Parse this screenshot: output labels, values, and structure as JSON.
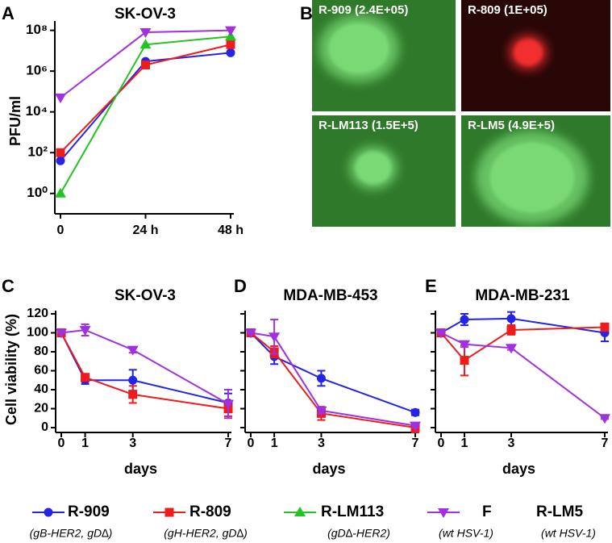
{
  "chart_data": [
    {
      "type": "line",
      "panel": "A",
      "title": "SK-OV-3",
      "y_label": "PFU/ml",
      "categories": [
        "0",
        "24 h",
        "48 h"
      ],
      "log_y": true,
      "ylim": [
        0.1,
        200000000
      ],
      "yticks": [
        {
          "value": 1,
          "label": "10⁰"
        },
        {
          "value": 100,
          "label": "10²"
        },
        {
          "value": 10000,
          "label": "10⁴"
        },
        {
          "value": 1000000,
          "label": "10⁶"
        },
        {
          "value": 100000000,
          "label": "10⁸"
        }
      ],
      "series": [
        {
          "color": "#2424e6",
          "marker": "circle",
          "values": [
            40,
            3000000,
            8000000
          ]
        },
        {
          "color": "#ee1c1c",
          "marker": "square",
          "values": [
            100,
            2000000,
            20000000
          ]
        },
        {
          "color": "#22c422",
          "marker": "triangle-up",
          "values": [
            1,
            20000000,
            50000000
          ]
        },
        {
          "color": "#a030e0",
          "marker": "triangle-down",
          "values": [
            50000,
            80000000,
            100000000
          ]
        }
      ]
    },
    {
      "type": "line",
      "panel": "C",
      "title": "SK-OV-3",
      "y_label": "Cell viability (%)",
      "x_label": "days",
      "x": [
        0,
        1,
        3,
        7
      ],
      "xlim": [
        0,
        7
      ],
      "xticks": [
        0,
        1,
        3,
        7
      ],
      "ylim": [
        0,
        120
      ],
      "yticks": [
        0,
        20,
        40,
        60,
        80,
        100,
        120
      ],
      "show_ytick_labels": true,
      "series": [
        {
          "color": "#2424e6",
          "marker": "circle",
          "values": [
            100,
            50,
            50,
            26
          ],
          "errors": [
            0,
            4,
            11,
            10
          ]
        },
        {
          "color": "#ee1c1c",
          "marker": "square",
          "values": [
            100,
            53,
            35,
            20
          ],
          "errors": [
            0,
            3,
            9,
            8
          ]
        },
        {
          "color": "#a030e0",
          "marker": "triangle-down",
          "values": [
            100,
            103,
            82,
            25
          ],
          "errors": [
            0,
            6,
            3,
            15
          ]
        }
      ]
    },
    {
      "type": "line",
      "panel": "D",
      "title": "MDA-MB-453",
      "x_label": "days",
      "x": [
        0,
        1,
        3,
        7
      ],
      "xlim": [
        0,
        7
      ],
      "xticks": [
        0,
        1,
        3,
        7
      ],
      "ylim": [
        0,
        120
      ],
      "yticks": [
        0,
        20,
        40,
        60,
        80,
        100,
        120
      ],
      "show_ytick_labels": false,
      "series": [
        {
          "color": "#2424e6",
          "marker": "circle",
          "values": [
            100,
            75,
            52,
            16
          ],
          "errors": [
            0,
            8,
            8,
            3
          ]
        },
        {
          "color": "#ee1c1c",
          "marker": "square",
          "values": [
            100,
            80,
            15,
            0
          ],
          "errors": [
            0,
            6,
            7,
            5
          ]
        },
        {
          "color": "#a030e0",
          "marker": "triangle-down",
          "values": [
            100,
            96,
            18,
            2
          ],
          "errors": [
            0,
            18,
            3,
            2
          ]
        }
      ]
    },
    {
      "type": "line",
      "panel": "E",
      "title": "MDA-MB-231",
      "x_label": "days",
      "x": [
        0,
        1,
        3,
        7
      ],
      "xlim": [
        0,
        7
      ],
      "xticks": [
        0,
        1,
        3,
        7
      ],
      "ylim": [
        0,
        120
      ],
      "yticks": [
        0,
        20,
        40,
        60,
        80,
        100,
        120
      ],
      "show_ytick_labels": false,
      "series": [
        {
          "color": "#2424e6",
          "marker": "circle",
          "values": [
            100,
            114,
            115,
            100
          ],
          "errors": [
            0,
            6,
            7,
            9
          ]
        },
        {
          "color": "#ee1c1c",
          "marker": "square",
          "values": [
            100,
            71,
            103,
            106
          ],
          "errors": [
            0,
            16,
            5,
            4
          ]
        },
        {
          "color": "#a030e0",
          "marker": "triangle-down",
          "values": [
            100,
            88,
            84,
            10
          ],
          "errors": [
            0,
            3,
            2,
            1
          ]
        }
      ]
    }
  ],
  "images": {
    "panel": "B",
    "items": [
      {
        "label": "R-909 (2.4E+05)",
        "tint": "green"
      },
      {
        "label": "R-809 (1E+05)",
        "tint": "red"
      },
      {
        "label": "R-LM113 (1.5E+5)",
        "tint": "green"
      },
      {
        "label": "R-LM5 (4.9E+5)",
        "tint": "green"
      }
    ]
  },
  "legend": [
    {
      "name": "R-909",
      "note": "(gB-HER2, gD∆)",
      "color": "#2424e6",
      "marker": "circle"
    },
    {
      "name": "R-809",
      "note": "(gH-HER2, gD∆)",
      "color": "#ee1c1c",
      "marker": "square"
    },
    {
      "name": "R-LM113",
      "note": "(gD∆-HER2)",
      "color": "#22c422",
      "marker": "triangle-up"
    },
    {
      "name": "F",
      "note": "(wt HSV-1)",
      "color": "#a030e0",
      "marker": "triangle-down"
    },
    {
      "name": "R-LM5",
      "note": "(wt HSV-1)"
    }
  ]
}
